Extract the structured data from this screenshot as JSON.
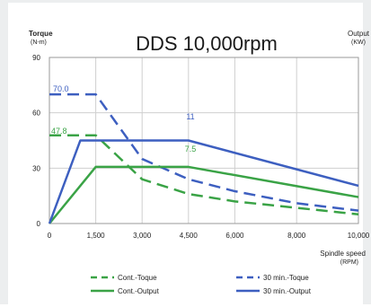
{
  "chart_data": {
    "type": "line",
    "title": "DDS 10,000rpm",
    "left_axis": {
      "label_line1": "Torque",
      "label_line2": "(N-m)",
      "ylim": [
        0,
        90
      ],
      "ticks": [
        0,
        30,
        60,
        90
      ]
    },
    "right_axis": {
      "label_line1": "Output",
      "label_line2": "(KW)",
      "ylim": [
        0,
        22
      ]
    },
    "x_axis": {
      "label_line1": "Spindle speed",
      "label_line2": "(RPM)",
      "xlim": [
        0,
        10000
      ],
      "ticks": [
        0,
        1500,
        3000,
        4500,
        6000,
        8000,
        10000
      ],
      "tick_labels": [
        "0",
        "1,500",
        "3,000",
        "4,500",
        "6,000",
        "8,000",
        "10,000"
      ]
    },
    "grid": true,
    "legend_position": "bottom",
    "series": [
      {
        "name": "Cont.-Toque",
        "axis": "left",
        "color": "#3aa346",
        "dash": true,
        "x": [
          0,
          1500,
          3000,
          4500,
          6000,
          8000,
          10000
        ],
        "y": [
          47.8,
          47.8,
          24,
          16,
          12,
          8.5,
          5
        ]
      },
      {
        "name": "30 min.-Toque",
        "axis": "left",
        "color": "#3d5fc0",
        "dash": true,
        "x": [
          0,
          1500,
          3000,
          4500,
          6000,
          8000,
          10000
        ],
        "y": [
          70.0,
          70.0,
          35,
          24,
          17.5,
          11,
          7
        ]
      },
      {
        "name": "Cont.-Output",
        "axis": "right",
        "color": "#3aa346",
        "dash": false,
        "x": [
          0,
          1500,
          4500,
          10000
        ],
        "y": [
          0,
          7.5,
          7.5,
          3.5
        ]
      },
      {
        "name": "30 min.-Output",
        "axis": "right",
        "color": "#3d5fc0",
        "dash": false,
        "x": [
          0,
          1000,
          4500,
          10000
        ],
        "y": [
          0,
          11,
          11,
          5
        ]
      }
    ],
    "annotations": [
      {
        "text": "70.0",
        "color": "#3d5fc0"
      },
      {
        "text": "47.8",
        "color": "#3aa346"
      },
      {
        "text": "11",
        "color": "#3d5fc0"
      },
      {
        "text": "7.5",
        "color": "#3aa346"
      }
    ]
  }
}
